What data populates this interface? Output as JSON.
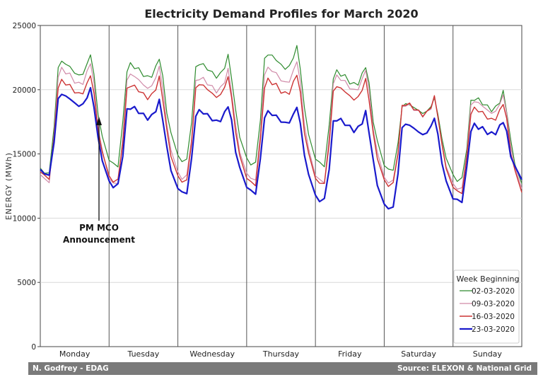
{
  "chart_data": {
    "type": "line",
    "title": "Electricity Demand Profiles for March 2020",
    "xlabel": "",
    "ylabel": "ENERGY (MWh)",
    "ylim": [
      0,
      25000
    ],
    "yticks": [
      0,
      5000,
      10000,
      15000,
      20000,
      25000
    ],
    "categories": [
      "Monday",
      "Tuesday",
      "Wednesday",
      "Thursday",
      "Friday",
      "Saturday",
      "Sunday"
    ],
    "x_unit": "day of week (7 days, 2 points per day: night trough, daytime peak)",
    "grid": true,
    "legend": {
      "title": "Week Beginning",
      "position": "bottom-right"
    },
    "annotation": {
      "text": [
        "PM MCO",
        "Announcement"
      ],
      "day": "Monday",
      "at_value": 18000
    },
    "series": [
      {
        "name": "02-03-2020",
        "color": "#2e8b2e",
        "width": 1.2,
        "day_peaks": [
          22800,
          22500,
          22600,
          23400,
          21900,
          19300,
          19800
        ],
        "troughs_start": 13900,
        "night_troughs": [
          14500,
          14900,
          14700,
          14600,
          14100,
          13400,
          12700
        ]
      },
      {
        "name": "09-03-2020",
        "color": "#d08aa8",
        "width": 1.2,
        "day_peaks": [
          22200,
          21800,
          21500,
          22300,
          21600,
          19300,
          19600
        ],
        "troughs_start": 13400,
        "night_troughs": [
          13100,
          13600,
          13500,
          13300,
          13200,
          12700,
          12300
        ]
      },
      {
        "name": "16-03-2020",
        "color": "#cc3333",
        "width": 1.4,
        "day_peaks": [
          21200,
          20900,
          21000,
          21300,
          20800,
          19400,
          19000
        ],
        "troughs_start": 13600,
        "night_troughs": [
          13300,
          13300,
          13100,
          13100,
          13000,
          12400,
          12000
        ]
      },
      {
        "name": "23-03-2020",
        "color": "#1a1acc",
        "width": 2.2,
        "day_peaks": [
          20100,
          19100,
          18800,
          18700,
          18200,
          17800,
          17600
        ],
        "troughs_start": 13800,
        "night_troughs": [
          12900,
          12300,
          12400,
          11800,
          11100,
          11500,
          13000
        ]
      }
    ]
  },
  "footer": {
    "left": "N. Godfrey - EDAG",
    "right": "Source: ELEXON & National Grid"
  }
}
